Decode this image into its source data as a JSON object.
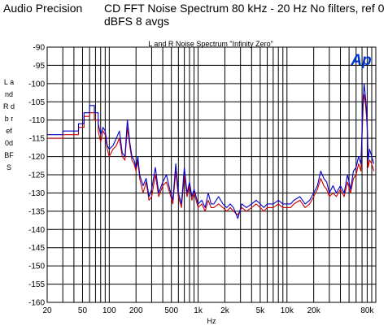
{
  "header": {
    "vendor": "Audio Precision",
    "title": "CD FFT Noise Spectrum  80 kHz - 20 Hz  No filters, ref 0 dBFS  8 avgs"
  },
  "logo_text": "Ap",
  "colors": {
    "left": "#cc0000",
    "right": "#0000cc",
    "grid": "#000000",
    "logo": "#0033cc"
  },
  "chart_data": {
    "type": "line",
    "title": "L and R Noise Spectrum \"Infinity Zero\"",
    "xlabel": "Hz",
    "ylabel": "L and R db ref 0dBFS",
    "xscale": "log",
    "xlim": [
      20,
      100000
    ],
    "ylim": [
      -160,
      -90
    ],
    "grid": true,
    "xticks": [
      {
        "v": 20,
        "label": "20"
      },
      {
        "v": 50,
        "label": "50"
      },
      {
        "v": 100,
        "label": "100"
      },
      {
        "v": 200,
        "label": "200"
      },
      {
        "v": 500,
        "label": "500"
      },
      {
        "v": 1000,
        "label": "1k"
      },
      {
        "v": 2000,
        "label": "2k"
      },
      {
        "v": 5000,
        "label": "5k"
      },
      {
        "v": 10000,
        "label": "10k"
      },
      {
        "v": 20000,
        "label": "20k"
      },
      {
        "v": 80000,
        "label": "80k"
      }
    ],
    "yticks": [
      {
        "v": -90,
        "label": "-90"
      },
      {
        "v": -95,
        "label": "-95"
      },
      {
        "v": -100,
        "label": "-100"
      },
      {
        "v": -105,
        "label": "-105"
      },
      {
        "v": -110,
        "label": "-110"
      },
      {
        "v": -115,
        "label": "-115"
      },
      {
        "v": -120,
        "label": "-120"
      },
      {
        "v": -125,
        "label": "-125"
      },
      {
        "v": -130,
        "label": "-130"
      },
      {
        "v": -135,
        "label": "-135"
      },
      {
        "v": -140,
        "label": "-140"
      },
      {
        "v": -145,
        "label": "-145"
      },
      {
        "v": -150,
        "label": "-150"
      },
      {
        "v": -155,
        "label": "-155"
      },
      {
        "v": -160,
        "label": "-160"
      }
    ],
    "series": [
      {
        "colorKey": "left",
        "x": [
          20,
          30,
          30,
          45,
          45,
          52,
          52,
          60,
          60,
          68,
          68,
          75,
          75,
          80,
          85,
          90,
          95,
          100,
          110,
          120,
          130,
          140,
          150,
          160,
          170,
          180,
          190,
          200,
          210,
          220,
          240,
          260,
          280,
          300,
          330,
          360,
          400,
          440,
          480,
          520,
          560,
          600,
          650,
          700,
          750,
          800,
          850,
          900,
          1000,
          1100,
          1200,
          1300,
          1400,
          1500,
          1700,
          1900,
          2100,
          2300,
          2500,
          2800,
          3100,
          3500,
          4000,
          4500,
          5000,
          5500,
          6000,
          7000,
          8000,
          9000,
          10000,
          11000,
          12000,
          14000,
          16000,
          18000,
          20000,
          22000,
          24000,
          26000,
          28000,
          30000,
          33000,
          36000,
          40000,
          44000,
          48000,
          52000,
          56000,
          60000,
          64000,
          68000,
          72000,
          74000,
          76000,
          78000,
          80000,
          82000,
          85000,
          90000,
          95000
        ],
        "y": [
          -115,
          -115,
          -114,
          -114,
          -112,
          -112,
          -109,
          -109,
          -108,
          -108,
          -110,
          -110,
          -113,
          -116,
          -113,
          -114,
          -118,
          -120,
          -118,
          -117,
          -115,
          -120,
          -121,
          -112,
          -117,
          -121,
          -122,
          -124,
          -121,
          -126,
          -130,
          -127,
          -132,
          -131,
          -125,
          -131,
          -128,
          -127,
          -130,
          -133,
          -124,
          -131,
          -134,
          -125,
          -131,
          -128,
          -132,
          -130,
          -134,
          -133,
          -135,
          -132,
          -134,
          -134,
          -133,
          -134,
          -135,
          -134,
          -135,
          -136,
          -134,
          -135,
          -134,
          -133,
          -134,
          -135,
          -134,
          -134,
          -133,
          -134,
          -134,
          -134,
          -133,
          -132,
          -134,
          -133,
          -131,
          -129,
          -126,
          -128,
          -129,
          -131,
          -130,
          -131,
          -129,
          -131,
          -127,
          -130,
          -126,
          -125,
          -122,
          -124,
          -106,
          -103,
          -105,
          -108,
          -112,
          -123,
          -121,
          -122,
          -124
        ]
      },
      {
        "colorKey": "right",
        "x": [
          20,
          30,
          30,
          45,
          45,
          52,
          52,
          60,
          60,
          68,
          68,
          75,
          75,
          80,
          85,
          90,
          95,
          100,
          110,
          120,
          130,
          140,
          150,
          160,
          170,
          180,
          190,
          200,
          210,
          220,
          240,
          260,
          280,
          300,
          330,
          360,
          400,
          440,
          480,
          520,
          560,
          600,
          650,
          700,
          750,
          800,
          850,
          900,
          1000,
          1100,
          1200,
          1300,
          1400,
          1500,
          1700,
          1900,
          2100,
          2300,
          2500,
          2800,
          3100,
          3500,
          4000,
          4500,
          5000,
          5500,
          6000,
          7000,
          8000,
          9000,
          10000,
          11000,
          12000,
          14000,
          16000,
          18000,
          20000,
          22000,
          24000,
          26000,
          28000,
          30000,
          33000,
          36000,
          40000,
          44000,
          48000,
          52000,
          56000,
          60000,
          64000,
          68000,
          72000,
          74000,
          76000,
          78000,
          80000,
          82000,
          85000,
          90000,
          95000
        ],
        "y": [
          -114,
          -114,
          -113,
          -113,
          -111,
          -111,
          -108,
          -108,
          -106,
          -106,
          -108,
          -108,
          -111,
          -114,
          -112,
          -113,
          -117,
          -118,
          -117,
          -115,
          -113,
          -119,
          -120,
          -110,
          -116,
          -120,
          -121,
          -123,
          -120,
          -125,
          -128,
          -126,
          -131,
          -129,
          -123,
          -130,
          -127,
          -125,
          -129,
          -132,
          -122,
          -130,
          -133,
          -123,
          -130,
          -127,
          -131,
          -129,
          -133,
          -132,
          -134,
          -130,
          -133,
          -133,
          -131,
          -133,
          -134,
          -133,
          -134,
          -137,
          -133,
          -134,
          -133,
          -132,
          -133,
          -134,
          -133,
          -133,
          -132,
          -133,
          -133,
          -133,
          -132,
          -131,
          -133,
          -132,
          -130,
          -128,
          -124,
          -126,
          -127,
          -130,
          -128,
          -130,
          -128,
          -130,
          -125,
          -129,
          -124,
          -123,
          -120,
          -122,
          -104,
          -100,
          -103,
          -106,
          -110,
          -121,
          -118,
          -120,
          -122
        ]
      }
    ]
  }
}
